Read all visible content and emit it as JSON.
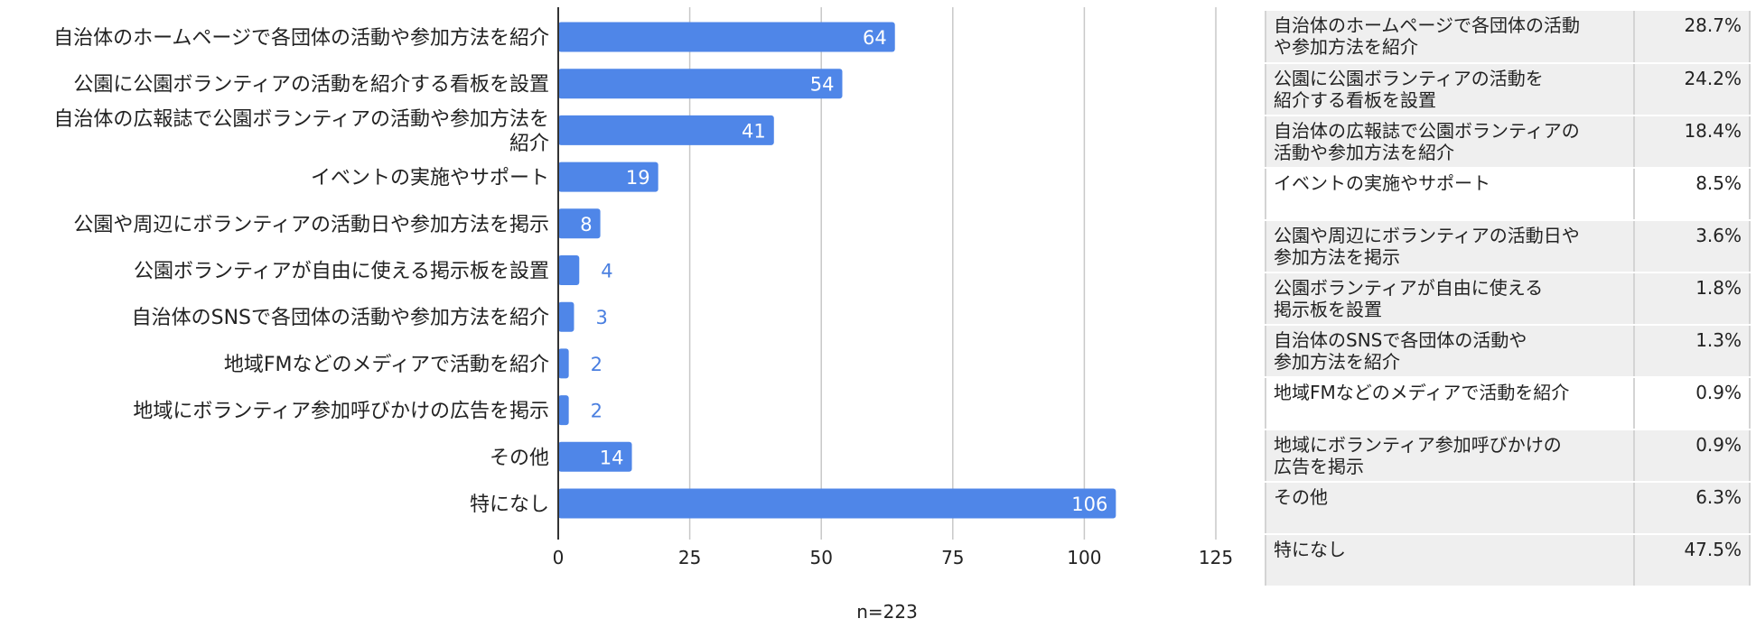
{
  "chart_data": {
    "type": "bar",
    "orientation": "horizontal",
    "categories": [
      "自治体のホームページで各団体の活動や参加方法を紹介",
      "公園に公園ボランティアの活動を紹介する看板を設置",
      "自治体の広報誌で公園ボランティアの活動や参加方法を紹介",
      "イベントの実施やサポート",
      "公園や周辺にボランティアの活動日や参加方法を掲示",
      "公園ボランティアが自由に使える掲示板を設置",
      "自治体のSNSで各団体の活動や参加方法を紹介",
      "地域FMなどのメディアで活動を紹介",
      "地域にボランティア参加呼びかけの広告を掲示",
      "その他",
      "特になし"
    ],
    "category_lines": [
      [
        "自治体のホームページで各団体の活動や参加方法を紹介"
      ],
      [
        "公園に公園ボランティアの活動を紹介する看板を設置"
      ],
      [
        "自治体の広報誌で公園ボランティアの活動や参加方法を",
        "紹介"
      ],
      [
        "イベントの実施やサポート"
      ],
      [
        "公園や周辺にボランティアの活動日や参加方法を掲示"
      ],
      [
        "公園ボランティアが自由に使える掲示板を設置"
      ],
      [
        "自治体のSNSで各団体の活動や参加方法を紹介"
      ],
      [
        "地域FMなどのメディアで活動を紹介"
      ],
      [
        "地域にボランティア参加呼びかけの広告を掲示"
      ],
      [
        "その他"
      ],
      [
        "特になし"
      ]
    ],
    "values": [
      64,
      54,
      41,
      19,
      8,
      4,
      3,
      2,
      2,
      14,
      106
    ],
    "xlabel": "n=223",
    "xlim": [
      0,
      125
    ],
    "xticks": [
      0,
      25,
      50,
      75,
      100,
      125
    ],
    "grid": true,
    "color": "#4f86e8"
  },
  "table": {
    "rows": [
      {
        "label_lines": [
          "自治体のホームページで各団体の活動",
          "や参加方法を紹介"
        ],
        "value": "28.7%"
      },
      {
        "label_lines": [
          "公園に公園ボランティアの活動を",
          "紹介する看板を設置"
        ],
        "value": "24.2%"
      },
      {
        "label_lines": [
          "自治体の広報誌で公園ボランティアの",
          "活動や参加方法を紹介"
        ],
        "value": "18.4%"
      },
      {
        "label_lines": [
          "イベントの実施やサポート"
        ],
        "value": "8.5%"
      },
      {
        "label_lines": [
          "公園や周辺にボランティアの活動日や",
          "参加方法を掲示"
        ],
        "value": "3.6%"
      },
      {
        "label_lines": [
          "公園ボランティアが自由に使える",
          "掲示板を設置"
        ],
        "value": "1.8%"
      },
      {
        "label_lines": [
          "自治体のSNSで各団体の活動や",
          "参加方法を紹介"
        ],
        "value": "1.3%"
      },
      {
        "label_lines": [
          "地域FMなどのメディアで活動を紹介"
        ],
        "value": "0.9%"
      },
      {
        "label_lines": [
          "地域にボランティア参加呼びかけの",
          "広告を掲示"
        ],
        "value": "0.9%"
      },
      {
        "label_lines": [
          "その他"
        ],
        "value": "6.3%"
      },
      {
        "label_lines": [
          "特になし"
        ],
        "value": "47.5%"
      }
    ]
  }
}
